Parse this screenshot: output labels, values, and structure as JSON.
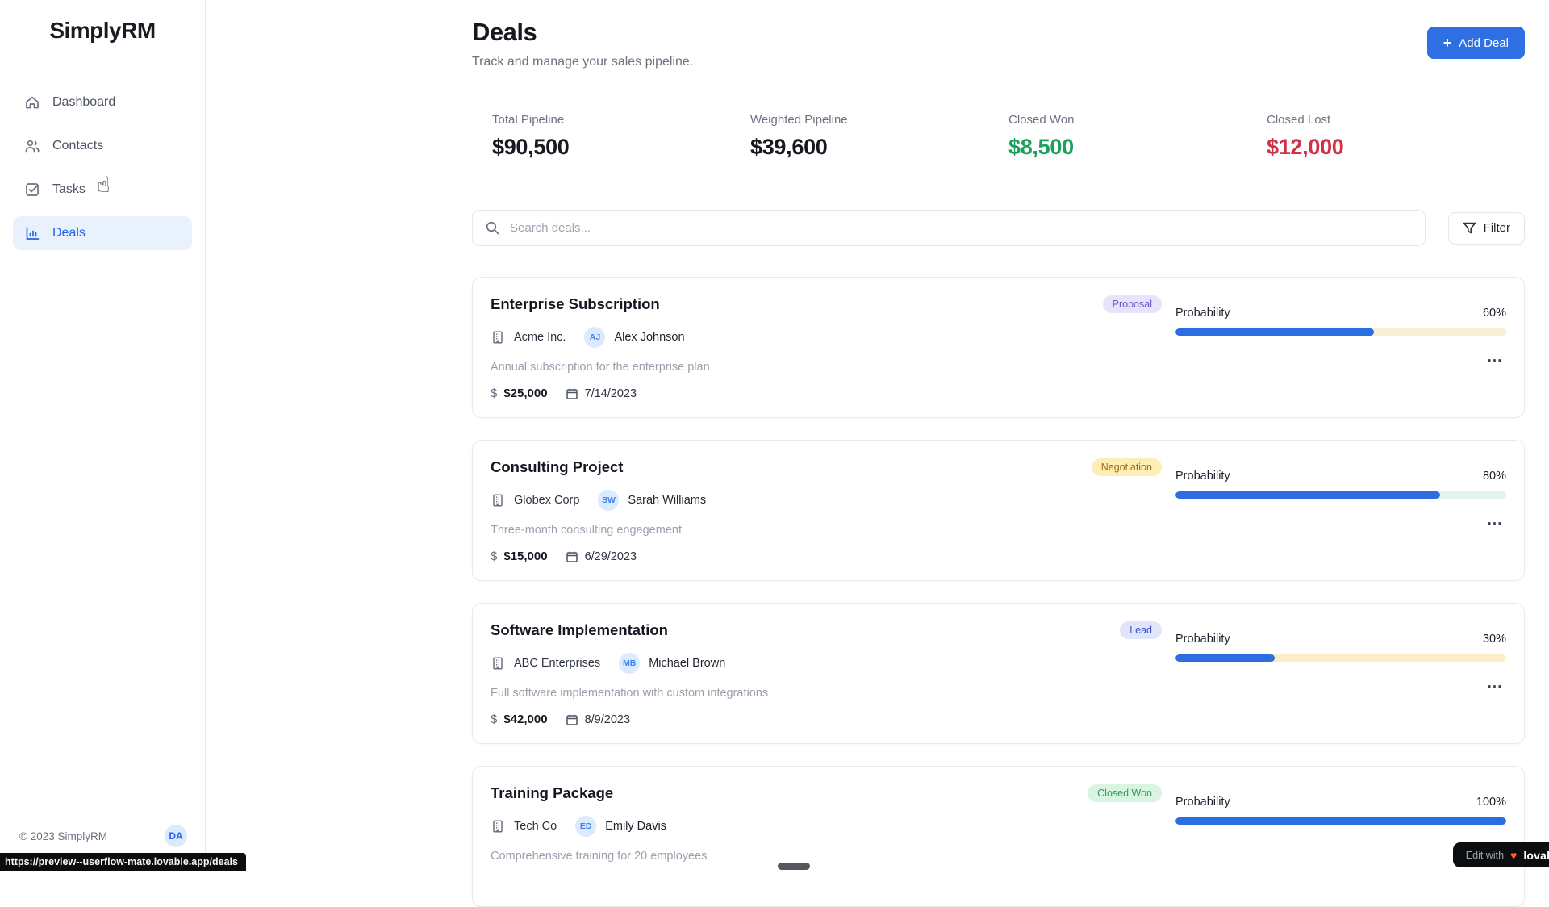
{
  "app": {
    "name": "SimplyRM"
  },
  "sidebar": {
    "items": [
      {
        "label": "Dashboard",
        "icon": "home-icon"
      },
      {
        "label": "Contacts",
        "icon": "contacts-icon"
      },
      {
        "label": "Tasks",
        "icon": "tasks-icon"
      },
      {
        "label": "Deals",
        "icon": "deals-icon",
        "active": true
      }
    ],
    "footer": {
      "copyright": "© 2023 SimplyRM",
      "avatar_initials": "DA"
    }
  },
  "header": {
    "title": "Deals",
    "subtitle": "Track and manage your sales pipeline.",
    "add_deal_label": "Add Deal"
  },
  "stats": [
    {
      "label": "Total Pipeline",
      "value": "$90,500",
      "color": "#16191f"
    },
    {
      "label": "Weighted Pipeline",
      "value": "$39,600",
      "color": "#16191f"
    },
    {
      "label": "Closed Won",
      "value": "$8,500",
      "color": "#1ea05c"
    },
    {
      "label": "Closed Lost",
      "value": "$12,000",
      "color": "#cf3148"
    }
  ],
  "toolbar": {
    "search_placeholder": "Search deals...",
    "filter_label": "Filter"
  },
  "labels": {
    "probability": "Probability"
  },
  "deals": [
    {
      "title": "Enterprise Subscription",
      "stage": "Proposal",
      "stage_bg": "#e8e3fb",
      "stage_fg": "#6458c8",
      "company": "Acme Inc.",
      "contact_initials": "AJ",
      "contact": "Alex Johnson",
      "description": "Annual subscription for the enterprise plan",
      "amount": "$25,000",
      "close_date": "7/14/2023",
      "probability_text": "60%",
      "probability_value": 60,
      "track_color": "#f8f0d3"
    },
    {
      "title": "Consulting Project",
      "stage": "Negotiation",
      "stage_bg": "#fceeb5",
      "stage_fg": "#a06a10",
      "company": "Globex Corp",
      "contact_initials": "SW",
      "contact": "Sarah Williams",
      "description": "Three-month consulting engagement",
      "amount": "$15,000",
      "close_date": "6/29/2023",
      "probability_text": "80%",
      "probability_value": 80,
      "track_color": "#e2f5e9"
    },
    {
      "title": "Software Implementation",
      "stage": "Lead",
      "stage_bg": "#dfe5fb",
      "stage_fg": "#4150c5",
      "company": "ABC Enterprises",
      "contact_initials": "MB",
      "contact": "Michael Brown",
      "description": "Full software implementation with custom integrations",
      "amount": "$42,000",
      "close_date": "8/9/2023",
      "probability_text": "30%",
      "probability_value": 30,
      "track_color": "#fbeec7"
    },
    {
      "title": "Training Package",
      "stage": "Closed Won",
      "stage_bg": "#d9f5e2",
      "stage_fg": "#27a15b",
      "company": "Tech Co",
      "contact_initials": "ED",
      "contact": "Emily Davis",
      "description": "Comprehensive training for 20 employees",
      "probability_text": "100%",
      "probability_value": 100,
      "track_color": "#e5e7eb"
    }
  ],
  "overlays": {
    "status_url": "https://preview--userflow-mate.lovable.app/deals",
    "edit_badge": {
      "prefix": "Edit with",
      "brand": "lovable"
    }
  },
  "icons": {
    "plus": "+",
    "more": "⋯",
    "dollar": "$",
    "heart": "♥",
    "cursor": "☝"
  }
}
